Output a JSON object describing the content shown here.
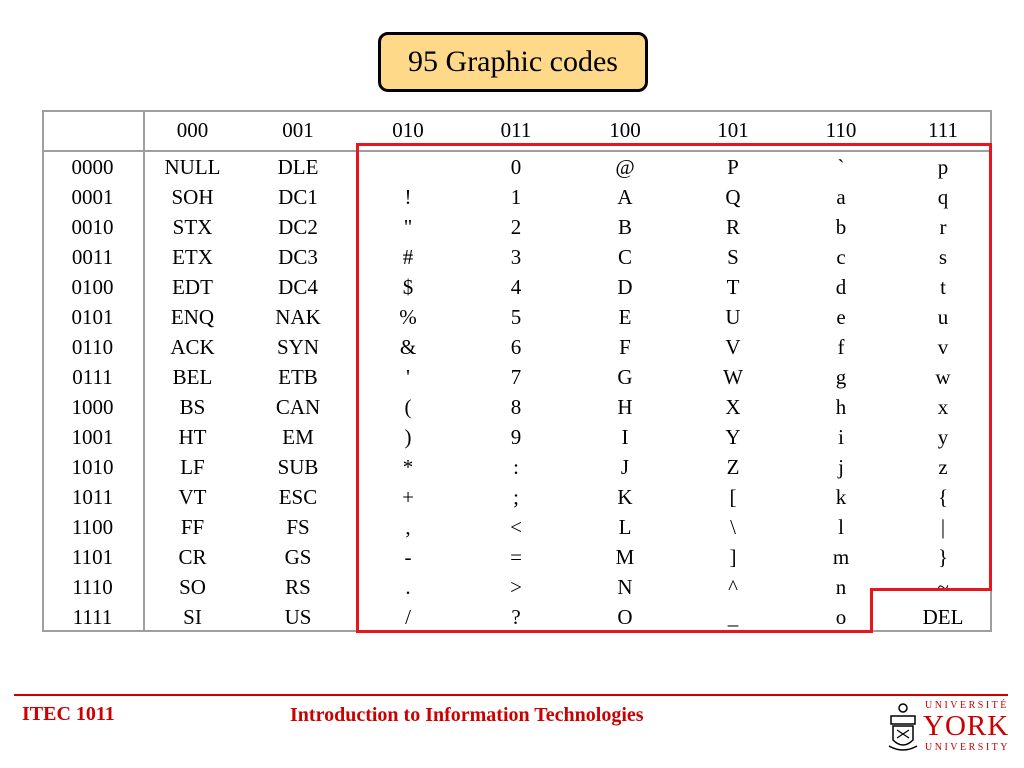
{
  "title": "95 Graphic codes",
  "column_headers": [
    "",
    "000",
    "001",
    "010",
    "011",
    "100",
    "101",
    "110",
    "111"
  ],
  "rows": [
    [
      "0000",
      "NULL",
      "DLE",
      "",
      "0",
      "@",
      "P",
      "`",
      "p"
    ],
    [
      "0001",
      "SOH",
      "DC1",
      "!",
      "1",
      "A",
      "Q",
      "a",
      "q"
    ],
    [
      "0010",
      "STX",
      "DC2",
      "\"",
      "2",
      "B",
      "R",
      "b",
      "r"
    ],
    [
      "0011",
      "ETX",
      "DC3",
      "#",
      "3",
      "C",
      "S",
      "c",
      "s"
    ],
    [
      "0100",
      "EDT",
      "DC4",
      "$",
      "4",
      "D",
      "T",
      "d",
      "t"
    ],
    [
      "0101",
      "ENQ",
      "NAK",
      "%",
      "5",
      "E",
      "U",
      "e",
      "u"
    ],
    [
      "0110",
      "ACK",
      "SYN",
      "&",
      "6",
      "F",
      "V",
      "f",
      "v"
    ],
    [
      "0111",
      "BEL",
      "ETB",
      "'",
      "7",
      "G",
      "W",
      "g",
      "w"
    ],
    [
      "1000",
      "BS",
      "CAN",
      "(",
      "8",
      "H",
      "X",
      "h",
      "x"
    ],
    [
      "1001",
      "HT",
      "EM",
      ")",
      "9",
      "I",
      "Y",
      "i",
      "y"
    ],
    [
      "1010",
      "LF",
      "SUB",
      "*",
      ":",
      "J",
      "Z",
      "j",
      "z"
    ],
    [
      "1011",
      "VT",
      "ESC",
      "+",
      ";",
      "K",
      "[",
      "k",
      "{"
    ],
    [
      "1100",
      "FF",
      "FS",
      ",",
      "<",
      "L",
      "\\",
      "l",
      "|"
    ],
    [
      "1101",
      "CR",
      "GS",
      "-",
      "=",
      "M",
      "]",
      "m",
      "}"
    ],
    [
      "1110",
      "SO",
      "RS",
      ".",
      ">",
      "N",
      "^",
      "n",
      "~"
    ],
    [
      "1111",
      "SI",
      "US",
      "/",
      "?",
      "O",
      "_",
      "o",
      "DEL"
    ]
  ],
  "footer": {
    "course_code": "ITEC 1011",
    "course_title": "Introduction to Information Technologies"
  },
  "logo": {
    "line1": "UNIVERSITÉ",
    "line2": "YORK",
    "line3": "UNIVERSITY"
  },
  "colors": {
    "highlight": "#e8141e",
    "title_box": "#ffd98a",
    "footer": "#cc0000",
    "table_border": "#9e9e9e"
  }
}
